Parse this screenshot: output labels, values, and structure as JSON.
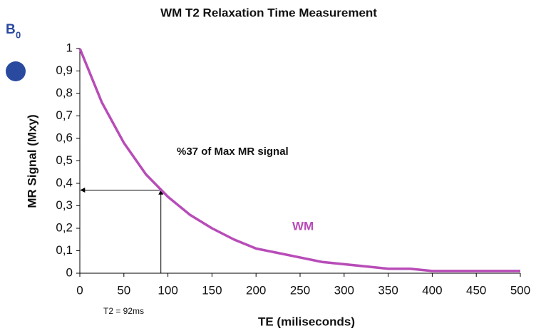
{
  "chart_data": {
    "type": "line",
    "title": "WM T2 Relaxation Time Measurement",
    "x_label": "TE (miliseconds)",
    "y_label": "MR Signal (Mxy)",
    "x": [
      0,
      25,
      50,
      75,
      100,
      125,
      150,
      175,
      200,
      225,
      250,
      275,
      300,
      325,
      350,
      375,
      400,
      425,
      450,
      475,
      500
    ],
    "series": [
      {
        "name": "WM",
        "color": "#b84cb8",
        "values": [
          1,
          0.76,
          0.58,
          0.44,
          0.34,
          0.26,
          0.2,
          0.15,
          0.11,
          0.09,
          0.07,
          0.05,
          0.04,
          0.03,
          0.02,
          0.02,
          0.01,
          0.01,
          0.01,
          0.01,
          0.01
        ]
      }
    ],
    "xlim": [
      0,
      500
    ],
    "ylim": [
      0,
      1
    ],
    "xticks": [
      0,
      50,
      100,
      150,
      200,
      250,
      300,
      350,
      400,
      450,
      500
    ],
    "yticks": [
      0,
      {
        "value": 0.1,
        "label": "0,1"
      },
      {
        "value": 0.2,
        "label": "0,2"
      },
      {
        "value": 0.3,
        "label": "0,3"
      },
      {
        "value": 0.4,
        "label": "0,4"
      },
      {
        "value": 0.5,
        "label": "0,5"
      },
      {
        "value": 0.6,
        "label": "0,6"
      },
      {
        "value": 0.7,
        "label": "0,7"
      },
      {
        "value": 0.8,
        "label": "0,8"
      },
      {
        "value": 0.9,
        "label": "0,9"
      },
      1
    ],
    "grid": false,
    "annotations": {
      "threshold": "%37 of Max MR signal",
      "t2": "T2 = 92ms",
      "b0_letter": "B",
      "b0_subscript": "0"
    },
    "t2_marker": {
      "x": 92,
      "y": 0.37
    }
  }
}
